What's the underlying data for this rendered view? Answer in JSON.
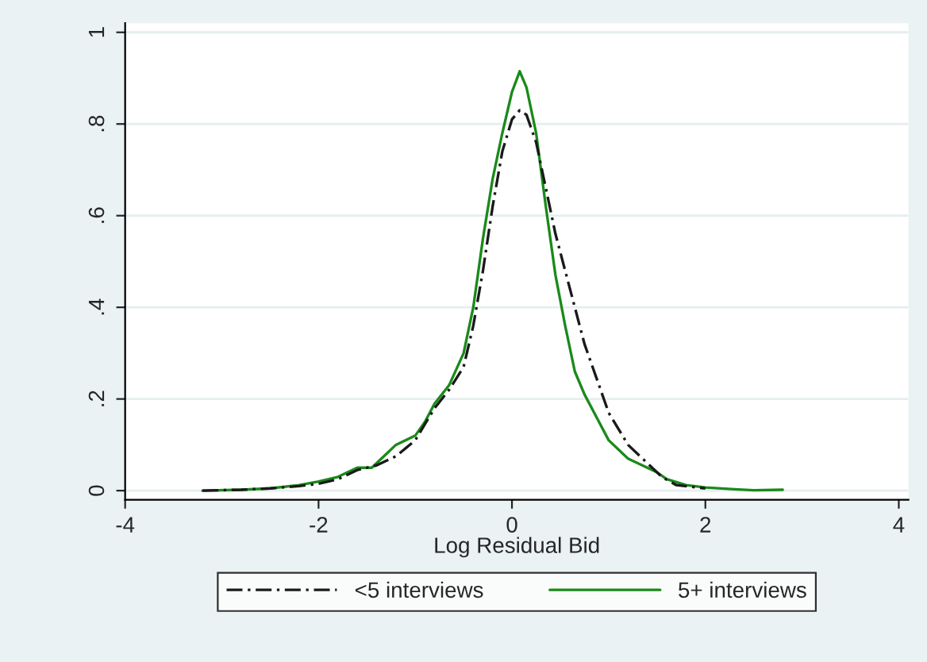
{
  "chart_data": {
    "type": "line",
    "xlabel": "Log Residual Bid",
    "xlim": [
      -4,
      4.1
    ],
    "ylim": [
      -0.02,
      1.02
    ],
    "xticks": [
      -4,
      -2,
      0,
      2,
      4
    ],
    "yticks": [
      0,
      {
        "value": 0.2,
        "label": ".2"
      },
      {
        "value": 0.4,
        "label": ".4"
      },
      {
        "value": 0.6,
        "label": ".6"
      },
      {
        "value": 0.8,
        "label": ".8"
      },
      1
    ],
    "grid": "y",
    "legend": "bottom",
    "marker": "none",
    "series": [
      {
        "name": "<5 interviews",
        "color": "#1a1a1a",
        "line_style": "dashed",
        "x": [
          -3.2,
          -2.8,
          -2.5,
          -2.2,
          -2.0,
          -1.8,
          -1.6,
          -1.4,
          -1.2,
          -1.0,
          -0.8,
          -0.65,
          -0.5,
          -0.4,
          -0.3,
          -0.2,
          -0.1,
          0.0,
          0.08,
          0.15,
          0.25,
          0.35,
          0.45,
          0.6,
          0.75,
          0.9,
          1.0,
          1.2,
          1.4,
          1.55,
          1.7,
          2.0
        ],
        "values": [
          0.0,
          0.002,
          0.005,
          0.01,
          0.015,
          0.025,
          0.045,
          0.055,
          0.075,
          0.11,
          0.18,
          0.22,
          0.27,
          0.36,
          0.48,
          0.62,
          0.74,
          0.81,
          0.83,
          0.82,
          0.76,
          0.66,
          0.56,
          0.44,
          0.32,
          0.23,
          0.17,
          0.1,
          0.06,
          0.03,
          0.012,
          0.005
        ]
      },
      {
        "name": "5+ interviews",
        "color": "#1a8a1a",
        "line_style": "solid",
        "x": [
          -3.2,
          -2.8,
          -2.5,
          -2.2,
          -2.0,
          -1.8,
          -1.6,
          -1.45,
          -1.3,
          -1.2,
          -1.0,
          -0.9,
          -0.8,
          -0.65,
          -0.5,
          -0.4,
          -0.3,
          -0.2,
          -0.1,
          0.0,
          0.08,
          0.15,
          0.25,
          0.35,
          0.45,
          0.55,
          0.65,
          0.75,
          0.9,
          1.0,
          1.2,
          1.4,
          1.5,
          1.6,
          1.8,
          2.0,
          2.3,
          2.5,
          2.8
        ],
        "values": [
          0.0,
          0.002,
          0.005,
          0.012,
          0.02,
          0.03,
          0.05,
          0.05,
          0.08,
          0.1,
          0.12,
          0.15,
          0.19,
          0.23,
          0.3,
          0.4,
          0.55,
          0.68,
          0.78,
          0.87,
          0.915,
          0.88,
          0.78,
          0.62,
          0.47,
          0.36,
          0.26,
          0.21,
          0.15,
          0.11,
          0.07,
          0.05,
          0.04,
          0.025,
          0.012,
          0.007,
          0.003,
          0.001,
          0.002
        ]
      }
    ]
  }
}
